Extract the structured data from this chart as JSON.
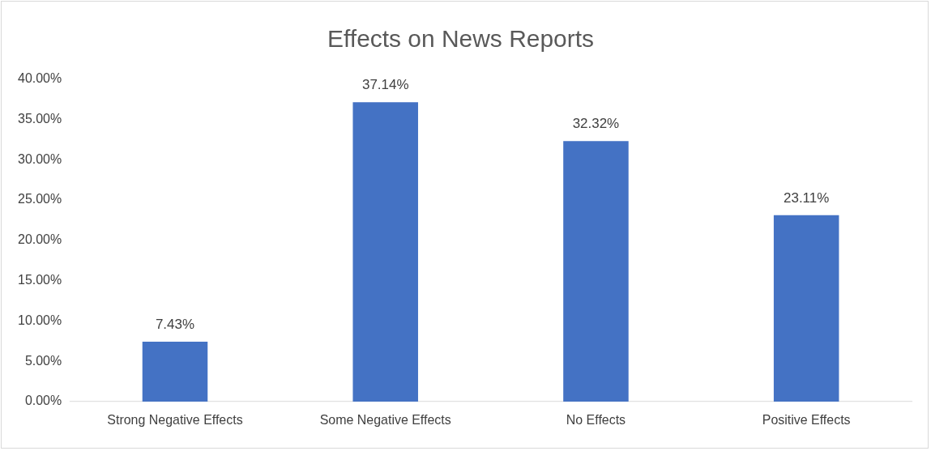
{
  "chart_data": {
    "type": "bar",
    "title": "Effects on News Reports",
    "categories": [
      "Strong Negative Effects",
      "Some Negative Effects",
      "No Effects",
      "Positive Effects"
    ],
    "values": [
      7.43,
      37.14,
      32.32,
      23.11
    ],
    "value_labels": [
      "7.43%",
      "37.14%",
      "32.32%",
      "23.11%"
    ],
    "color": "#4472c4",
    "ylim": [
      0,
      40
    ],
    "yticks": [
      {
        "value": 0,
        "label": "0.00%"
      },
      {
        "value": 5,
        "label": "5.00%"
      },
      {
        "value": 10,
        "label": "10.00%"
      },
      {
        "value": 15,
        "label": "15.00%"
      },
      {
        "value": 20,
        "label": "20.00%"
      },
      {
        "value": 25,
        "label": "25.00%"
      },
      {
        "value": 30,
        "label": "30.00%"
      },
      {
        "value": 35,
        "label": "35.00%"
      },
      {
        "value": 40,
        "label": "40.00%"
      }
    ],
    "grid": false,
    "legend": false
  }
}
